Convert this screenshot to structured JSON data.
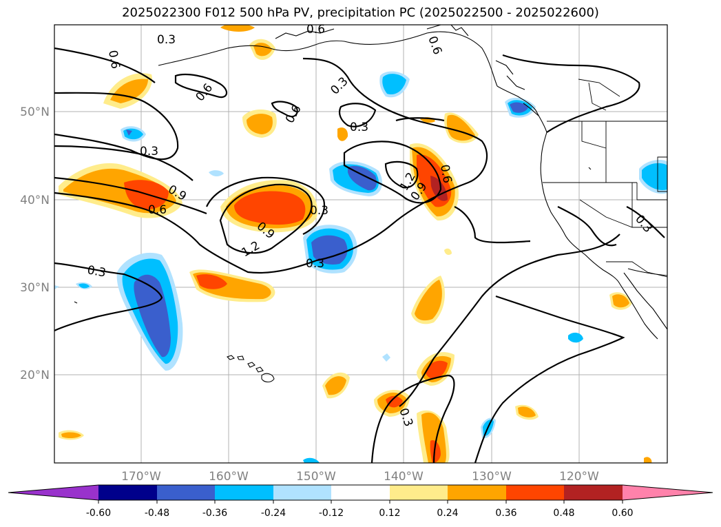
{
  "title": "2025022300 F012 500 hPa PV, precipitation PC (2025022500 - 2025022600)",
  "latitude_labels": [
    "20°N",
    "30°N",
    "40°N",
    "50°N"
  ],
  "longitude_labels": [
    "170°W",
    "160°W",
    "150°W",
    "140°W",
    "130°W",
    "120°W"
  ],
  "contour_labels": [
    "0.3",
    "0.6",
    "0.6",
    "0.6",
    "0.3",
    "0.6",
    "0.6",
    "0.3",
    "0.3",
    "0.9",
    "0.6",
    "0.3",
    "0.9",
    "1.2",
    "0.3",
    "1.2",
    "0.9",
    "0.6",
    "0.3",
    "0.3",
    "0.3"
  ],
  "colorbar": {
    "ticks": [
      "-0.60",
      "-0.48",
      "-0.36",
      "-0.24",
      "-0.12",
      "0.12",
      "0.24",
      "0.36",
      "0.48",
      "0.60"
    ],
    "colors": {
      "extend_low": "#9932cc",
      "b1": "#00008b",
      "b2": "#3a5fcd",
      "b3": "#00bfff",
      "b4": "#b0e2ff",
      "b5": "#ffffff",
      "b6": "#ffec8b",
      "b7": "#ffa500",
      "b8": "#ff4500",
      "b9": "#b22222",
      "extend_high": "#ff82ab"
    }
  }
}
